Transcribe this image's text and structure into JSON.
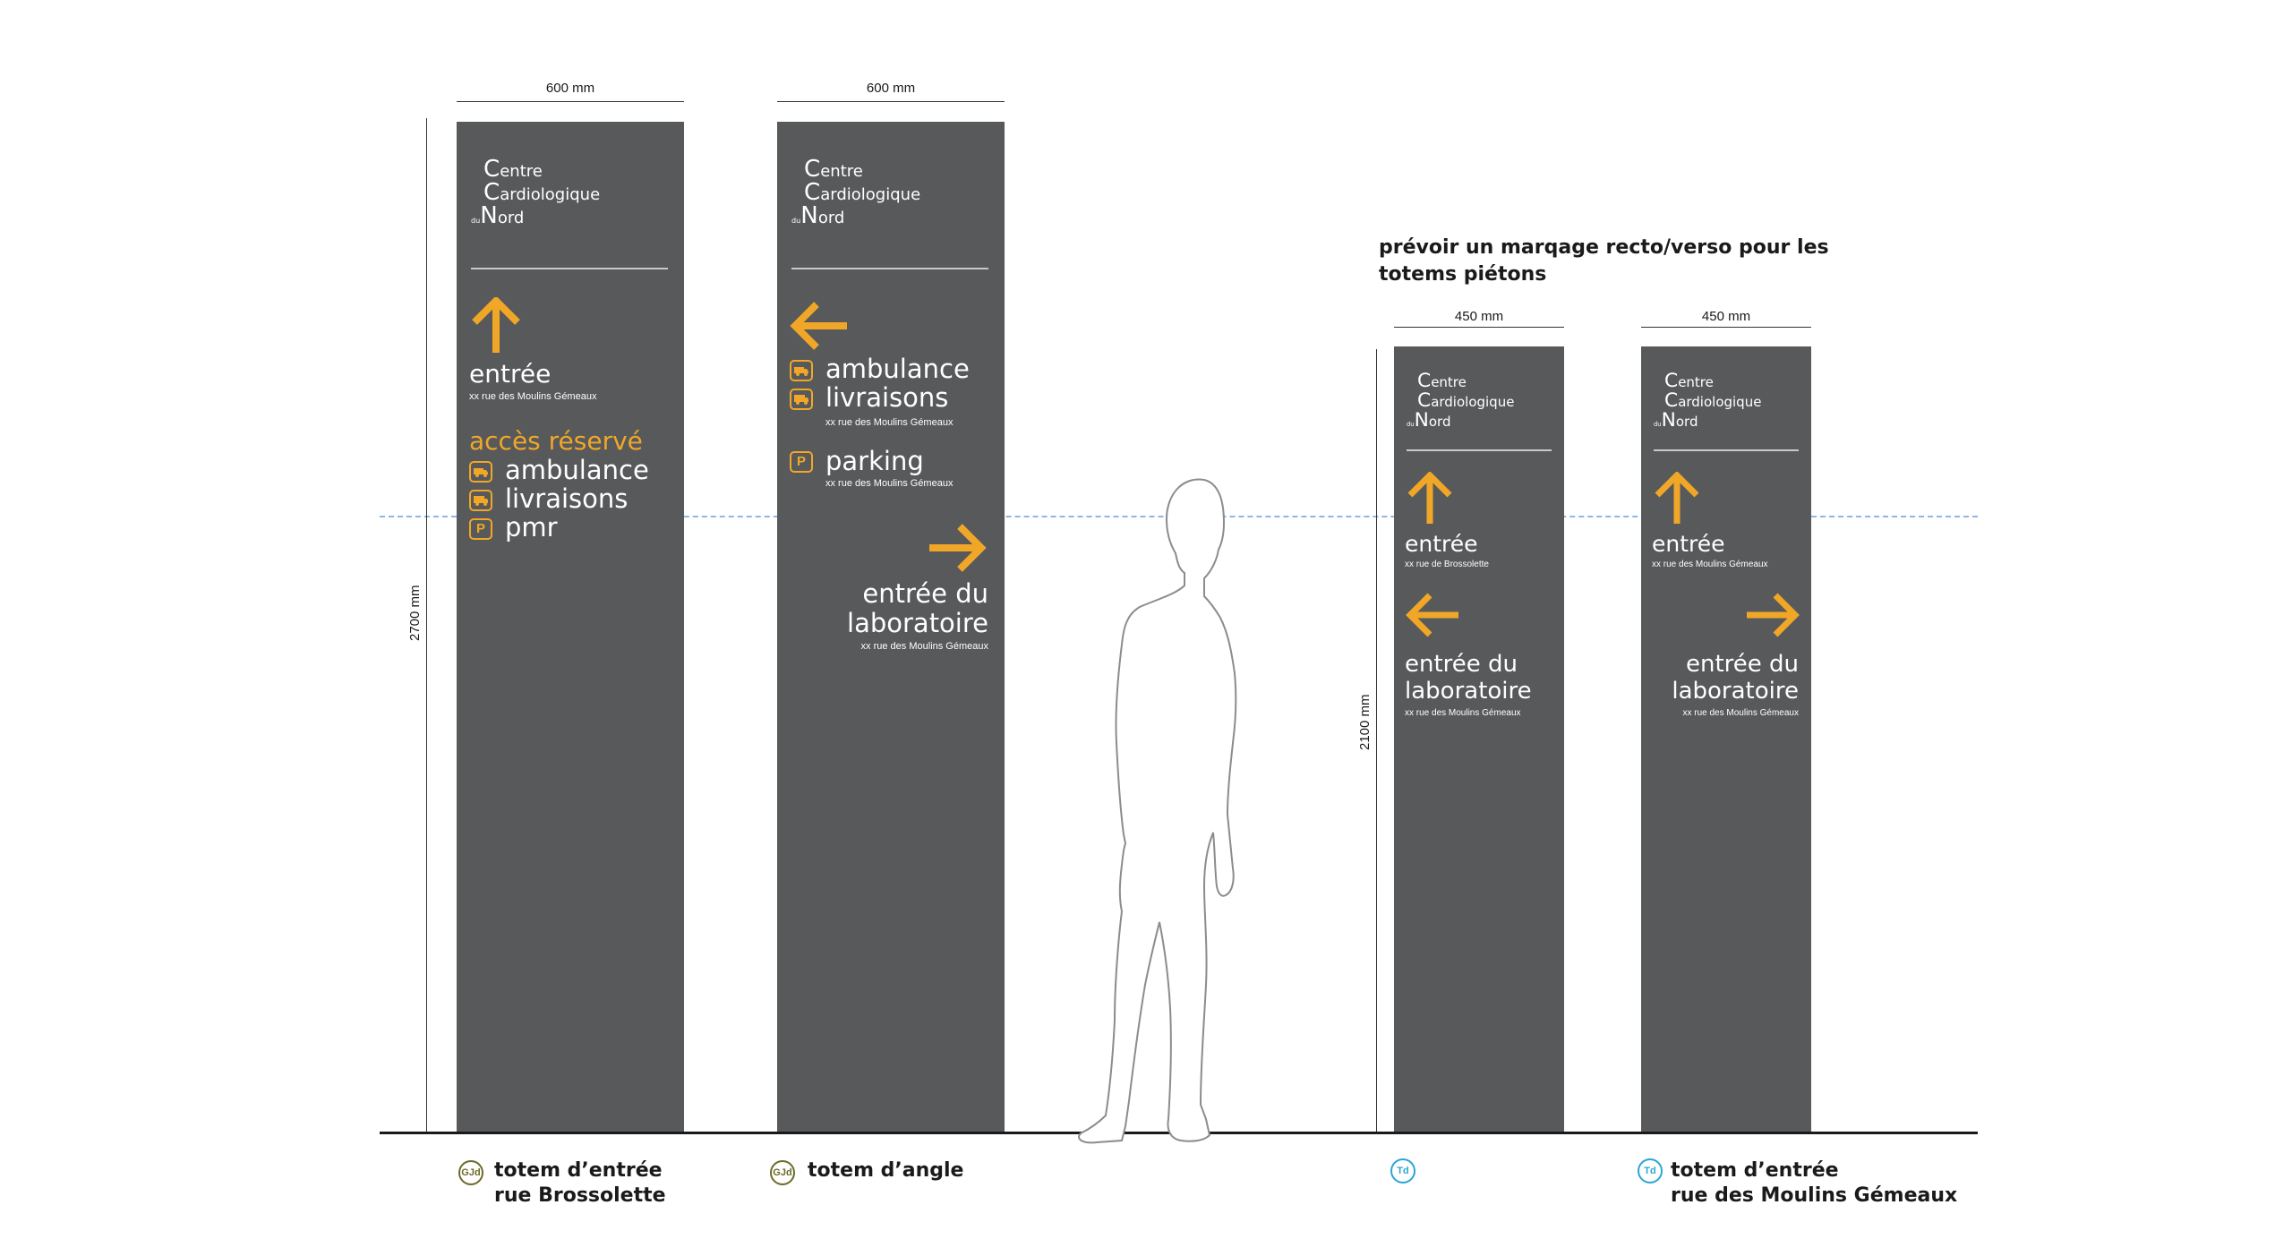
{
  "dimensions": {
    "width_totem1": "600 mm",
    "width_totem2": "600 mm",
    "width_totem3": "450 mm",
    "width_totem4": "450 mm",
    "height_large": "2700 mm",
    "height_small": "2100 mm"
  },
  "note": {
    "line1": "prévoir un marqage recto/verso pour les",
    "line2": "totems piétons"
  },
  "logo": {
    "c1": "C",
    "w1": "entre",
    "c2": "C",
    "w2": "ardiologique",
    "du": "du",
    "c3": "N",
    "w3": "ord"
  },
  "totem1": {
    "entree": "entrée",
    "entree_addr": "xx rue des Moulins Gémeaux",
    "acces": "accès réservé",
    "ambulance": "ambulance",
    "livraisons": "livraisons",
    "pmr": "pmr",
    "icon_pmr": "P"
  },
  "totem2": {
    "ambulance": "ambulance",
    "livraisons": "livraisons",
    "livraisons_addr": "xx rue des Moulins Gémeaux",
    "icon_parking": "P",
    "parking": "parking",
    "parking_addr": "xx rue des Moulins Gémeaux",
    "labo1": "entrée du",
    "labo2": "laboratoire",
    "labo_addr": "xx rue des Moulins Gémeaux"
  },
  "totem3": {
    "entree": "entrée",
    "entree_addr": "xx rue de Brossolette",
    "labo1": "entrée du",
    "labo2": "laboratoire",
    "labo_addr": "xx rue des Moulins Gémeaux"
  },
  "totem4": {
    "entree": "entrée",
    "entree_addr": "xx rue des Moulins Gémeaux",
    "labo1": "entrée du",
    "labo2": "laboratoire",
    "labo_addr": "xx rue des Moulins Gémeaux"
  },
  "captions": {
    "badge_gtd": "GJd",
    "badge_td": "Td",
    "cap1_line1": "totem d’entrée",
    "cap1_line2": "rue Brossolette",
    "cap2": "totem d’angle",
    "cap4_line1": "totem d’entrée",
    "cap4_line2": "rue des Moulins Gémeaux"
  },
  "colors": {
    "totem": "#58595b",
    "accent": "#f0a728",
    "badge_olive": "#6b6b2a",
    "badge_cyan": "#2aa6d6",
    "eye_line": "#8fb6e6"
  },
  "icons": [
    "arrow-up-icon",
    "arrow-left-icon",
    "arrow-right-icon",
    "ambulance-icon",
    "truck-icon",
    "pmr-parking-icon",
    "parking-icon"
  ]
}
